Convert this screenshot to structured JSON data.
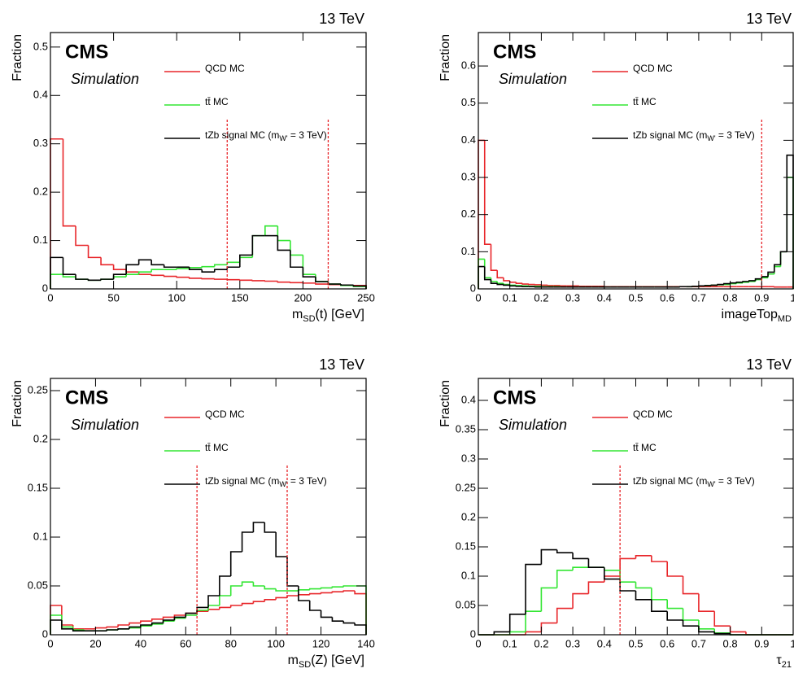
{
  "chart_data": [
    {
      "type": "histogram",
      "title": "13 TeV",
      "annotations": [
        "CMS",
        "Simulation"
      ],
      "ylabel": "Fraction",
      "xlabel": {
        "main": "m",
        "sub": "SD",
        "rest": "(t) [GeV]"
      },
      "xlim": [
        0,
        250
      ],
      "ylim": [
        0,
        0.53
      ],
      "xticks": [
        0,
        50,
        100,
        150,
        200,
        250
      ],
      "yticks": [
        0,
        0.1,
        0.2,
        0.3,
        0.4,
        0.5
      ],
      "bins": [
        0,
        10,
        20,
        30,
        40,
        50,
        60,
        70,
        80,
        90,
        100,
        110,
        120,
        130,
        140,
        150,
        160,
        170,
        180,
        190,
        200,
        210,
        220,
        230,
        240,
        250
      ],
      "cuts": [
        140,
        220
      ],
      "cut_color": "#e8262a",
      "series": [
        {
          "name": "QCD MC",
          "color": "#e8262a",
          "values": [
            0.31,
            0.13,
            0.09,
            0.065,
            0.05,
            0.04,
            0.035,
            0.03,
            0.028,
            0.026,
            0.024,
            0.022,
            0.021,
            0.02,
            0.019,
            0.018,
            0.017,
            0.016,
            0.014,
            0.013,
            0.012,
            0.01,
            0.009,
            0.008,
            0.007
          ]
        },
        {
          "name": "tt̄ MC",
          "color": "#33e633",
          "values": [
            0.03,
            0.025,
            0.02,
            0.018,
            0.02,
            0.025,
            0.03,
            0.035,
            0.04,
            0.04,
            0.042,
            0.044,
            0.046,
            0.05,
            0.055,
            0.065,
            0.11,
            0.13,
            0.1,
            0.07,
            0.03,
            0.015,
            0.01,
            0.007,
            0.005
          ]
        },
        {
          "name": "tZb signal MC (m",
          "name_sub": "W'",
          "name_end": " = 3 TeV)",
          "color": "#000000",
          "values": [
            0.065,
            0.03,
            0.02,
            0.018,
            0.02,
            0.03,
            0.05,
            0.06,
            0.05,
            0.045,
            0.045,
            0.04,
            0.035,
            0.04,
            0.045,
            0.07,
            0.11,
            0.11,
            0.08,
            0.045,
            0.025,
            0.015,
            0.01,
            0.008,
            0.006
          ]
        }
      ]
    },
    {
      "type": "histogram",
      "title": "13 TeV",
      "annotations": [
        "CMS",
        "Simulation"
      ],
      "ylabel": "Fraction",
      "xlabel": {
        "main": "imageTop",
        "sub": "MD",
        "rest": ""
      },
      "xlim": [
        0,
        1
      ],
      "ylim": [
        0,
        0.69
      ],
      "xticks": [
        0,
        0.1,
        0.2,
        0.3,
        0.4,
        0.5,
        0.6,
        0.7,
        0.8,
        0.9,
        1
      ],
      "yticks": [
        0,
        0.1,
        0.2,
        0.3,
        0.4,
        0.5,
        0.6
      ],
      "bins": [
        0,
        0.02,
        0.04,
        0.06,
        0.08,
        0.1,
        0.12,
        0.14,
        0.16,
        0.18,
        0.2,
        0.22,
        0.24,
        0.26,
        0.28,
        0.3,
        0.32,
        0.34,
        0.36,
        0.38,
        0.4,
        0.42,
        0.44,
        0.46,
        0.48,
        0.5,
        0.52,
        0.54,
        0.56,
        0.58,
        0.6,
        0.62,
        0.64,
        0.66,
        0.68,
        0.7,
        0.72,
        0.74,
        0.76,
        0.78,
        0.8,
        0.82,
        0.84,
        0.86,
        0.88,
        0.9,
        0.92,
        0.94,
        0.96,
        0.98,
        1
      ],
      "cuts": [
        0.9
      ],
      "cut_color": "#e8262a",
      "series": [
        {
          "name": "QCD MC",
          "color": "#e8262a",
          "values": [
            0.4,
            0.12,
            0.05,
            0.03,
            0.022,
            0.018,
            0.015,
            0.013,
            0.012,
            0.011,
            0.01,
            0.009,
            0.009,
            0.008,
            0.008,
            0.008,
            0.007,
            0.007,
            0.007,
            0.007,
            0.006,
            0.006,
            0.006,
            0.006,
            0.006,
            0.006,
            0.006,
            0.006,
            0.006,
            0.006,
            0.006,
            0.006,
            0.006,
            0.006,
            0.006,
            0.006,
            0.006,
            0.006,
            0.006,
            0.006,
            0.006,
            0.006,
            0.006,
            0.006,
            0.006,
            0.006,
            0.006,
            0.005,
            0.005,
            0.005
          ]
        },
        {
          "name": "tt̄ MC",
          "color": "#33e633",
          "values": [
            0.08,
            0.03,
            0.02,
            0.015,
            0.012,
            0.01,
            0.009,
            0.008,
            0.007,
            0.007,
            0.006,
            0.006,
            0.006,
            0.005,
            0.005,
            0.005,
            0.005,
            0.005,
            0.005,
            0.005,
            0.005,
            0.005,
            0.005,
            0.005,
            0.005,
            0.005,
            0.005,
            0.005,
            0.005,
            0.005,
            0.005,
            0.005,
            0.006,
            0.006,
            0.007,
            0.008,
            0.009,
            0.01,
            0.011,
            0.012,
            0.014,
            0.016,
            0.018,
            0.02,
            0.025,
            0.03,
            0.04,
            0.06,
            0.1,
            0.3
          ]
        },
        {
          "name": "tZb signal MC (m",
          "name_sub": "W'",
          "name_end": " = 3 TeV)",
          "color": "#000000",
          "values": [
            0.06,
            0.025,
            0.015,
            0.012,
            0.01,
            0.008,
            0.007,
            0.006,
            0.006,
            0.005,
            0.005,
            0.005,
            0.005,
            0.005,
            0.005,
            0.005,
            0.005,
            0.005,
            0.005,
            0.005,
            0.005,
            0.005,
            0.005,
            0.005,
            0.005,
            0.005,
            0.005,
            0.005,
            0.005,
            0.005,
            0.005,
            0.005,
            0.006,
            0.006,
            0.007,
            0.008,
            0.009,
            0.01,
            0.012,
            0.014,
            0.016,
            0.018,
            0.02,
            0.022,
            0.027,
            0.033,
            0.045,
            0.065,
            0.1,
            0.36
          ]
        }
      ]
    },
    {
      "type": "histogram",
      "title": "13 TeV",
      "annotations": [
        "CMS",
        "Simulation"
      ],
      "ylabel": "Fraction",
      "xlabel": {
        "main": "m",
        "sub": "SD",
        "rest": "(Z) [GeV]"
      },
      "xlim": [
        0,
        140
      ],
      "ylim": [
        0,
        0.2625
      ],
      "xticks": [
        0,
        20,
        40,
        60,
        80,
        100,
        120,
        140
      ],
      "yticks": [
        0,
        0.05,
        0.1,
        0.15,
        0.2,
        0.25
      ],
      "bins": [
        0,
        5,
        10,
        15,
        20,
        25,
        30,
        35,
        40,
        45,
        50,
        55,
        60,
        65,
        70,
        75,
        80,
        85,
        90,
        95,
        100,
        105,
        110,
        115,
        120,
        125,
        130,
        135,
        140
      ],
      "cuts": [
        65,
        105
      ],
      "cut_color": "#e8262a",
      "series": [
        {
          "name": "QCD MC",
          "color": "#e8262a",
          "values": [
            0.03,
            0.01,
            0.006,
            0.006,
            0.007,
            0.008,
            0.01,
            0.012,
            0.014,
            0.016,
            0.018,
            0.02,
            0.022,
            0.024,
            0.026,
            0.028,
            0.03,
            0.032,
            0.034,
            0.036,
            0.038,
            0.04,
            0.041,
            0.042,
            0.043,
            0.044,
            0.045,
            0.042
          ]
        },
        {
          "name": "tt̄ MC",
          "color": "#33e633",
          "values": [
            0.02,
            0.008,
            0.005,
            0.004,
            0.004,
            0.005,
            0.006,
            0.007,
            0.009,
            0.011,
            0.014,
            0.017,
            0.02,
            0.025,
            0.03,
            0.04,
            0.05,
            0.054,
            0.05,
            0.047,
            0.045,
            0.045,
            0.046,
            0.047,
            0.048,
            0.049,
            0.05,
            0.05
          ]
        },
        {
          "name": "tZb signal MC (m",
          "name_sub": "W'",
          "name_end": " = 3 TeV)",
          "color": "#000000",
          "values": [
            0.015,
            0.006,
            0.004,
            0.004,
            0.004,
            0.005,
            0.006,
            0.008,
            0.01,
            0.012,
            0.015,
            0.018,
            0.022,
            0.028,
            0.04,
            0.06,
            0.085,
            0.105,
            0.115,
            0.105,
            0.08,
            0.05,
            0.035,
            0.025,
            0.018,
            0.014,
            0.012,
            0.01
          ]
        }
      ]
    },
    {
      "type": "histogram",
      "title": "13 TeV",
      "annotations": [
        "CMS",
        "Simulation"
      ],
      "ylabel": "Fraction",
      "xlabel": {
        "main": "τ",
        "sub": "21",
        "rest": ""
      },
      "xlim": [
        0,
        1
      ],
      "ylim": [
        0,
        0.4375
      ],
      "xticks": [
        0,
        0.1,
        0.2,
        0.3,
        0.4,
        0.5,
        0.6,
        0.7,
        0.8,
        0.9,
        1
      ],
      "yticks": [
        0,
        0.05,
        0.1,
        0.15,
        0.2,
        0.25,
        0.3,
        0.35,
        0.4
      ],
      "bins": [
        0,
        0.05,
        0.1,
        0.15,
        0.2,
        0.25,
        0.3,
        0.35,
        0.4,
        0.45,
        0.5,
        0.55,
        0.6,
        0.65,
        0.7,
        0.75,
        0.8,
        0.85,
        0.9,
        0.95,
        1
      ],
      "cuts": [
        0.45
      ],
      "cut_color": "#e8262a",
      "series": [
        {
          "name": "QCD MC",
          "color": "#e8262a",
          "values": [
            0,
            0,
            0,
            0.005,
            0.02,
            0.045,
            0.07,
            0.09,
            0.1,
            0.13,
            0.135,
            0.125,
            0.1,
            0.07,
            0.04,
            0.015,
            0.005,
            0,
            0,
            0
          ]
        },
        {
          "name": "tt̄ MC",
          "color": "#33e633",
          "values": [
            0,
            0,
            0.005,
            0.04,
            0.08,
            0.11,
            0.115,
            0.115,
            0.11,
            0.09,
            0.08,
            0.06,
            0.045,
            0.025,
            0.01,
            0.003,
            0,
            0,
            0,
            0
          ]
        },
        {
          "name": "tZb signal MC (m",
          "name_sub": "W'",
          "name_end": " = 3 TeV)",
          "color": "#000000",
          "values": [
            0,
            0.005,
            0.035,
            0.12,
            0.145,
            0.14,
            0.13,
            0.115,
            0.095,
            0.075,
            0.06,
            0.04,
            0.025,
            0.015,
            0.005,
            0.002,
            0,
            0,
            0,
            0
          ]
        }
      ]
    }
  ]
}
